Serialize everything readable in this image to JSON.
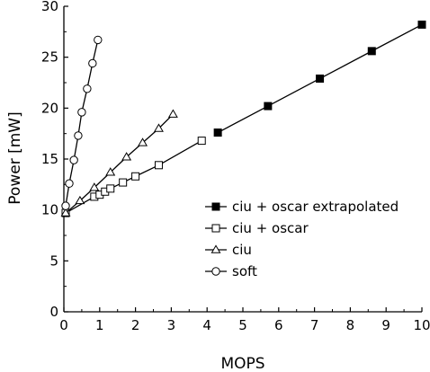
{
  "chart_data": {
    "type": "line",
    "title": "",
    "xlabel": "MOPS",
    "ylabel": "Power [mW]",
    "xlim": [
      0,
      10
    ],
    "ylim": [
      0,
      30
    ],
    "xticks": [
      "0",
      "1",
      "2",
      "3",
      "4",
      "5",
      "6",
      "7",
      "8",
      "9",
      "10"
    ],
    "yticks": [
      "0",
      "5",
      "10",
      "15",
      "20",
      "25",
      "30"
    ],
    "grid": false,
    "legend_position": "middle-right",
    "series": [
      {
        "name": "ciu + oscar extrapolated",
        "marker": "filled-square",
        "points": [
          [
            4.3,
            17.6
          ],
          [
            5.7,
            20.2
          ],
          [
            7.15,
            22.9
          ],
          [
            8.6,
            25.6
          ],
          [
            10.0,
            28.2
          ]
        ]
      },
      {
        "name": "ciu + oscar",
        "marker": "open-square",
        "points": [
          [
            0.05,
            9.7
          ],
          [
            0.85,
            11.3
          ],
          [
            1.0,
            11.5
          ],
          [
            1.15,
            11.8
          ],
          [
            1.3,
            12.1
          ],
          [
            1.65,
            12.7
          ],
          [
            2.0,
            13.3
          ],
          [
            2.65,
            14.4
          ],
          [
            3.85,
            16.8
          ]
        ]
      },
      {
        "name": "ciu",
        "marker": "open-triangle",
        "points": [
          [
            0.05,
            9.7
          ],
          [
            0.45,
            10.9
          ],
          [
            0.85,
            12.2
          ],
          [
            1.3,
            13.7
          ],
          [
            1.75,
            15.2
          ],
          [
            2.2,
            16.6
          ],
          [
            2.65,
            18.0
          ],
          [
            3.05,
            19.4
          ]
        ]
      },
      {
        "name": "soft",
        "marker": "open-circle",
        "points": [
          [
            0.05,
            10.4
          ],
          [
            0.15,
            12.6
          ],
          [
            0.28,
            14.9
          ],
          [
            0.4,
            17.3
          ],
          [
            0.5,
            19.6
          ],
          [
            0.65,
            21.9
          ],
          [
            0.8,
            24.4
          ],
          [
            0.95,
            26.7
          ]
        ]
      }
    ]
  }
}
